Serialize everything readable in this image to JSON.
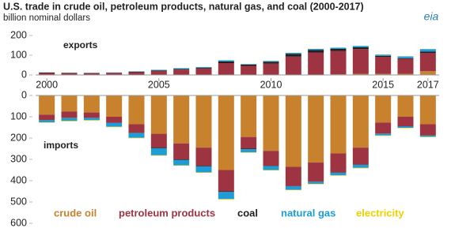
{
  "chart_data": {
    "type": "bar",
    "stacked": true,
    "title": "U.S. trade in crude oil, petroleum products, natural gas, and coal (2000-2017)",
    "subtitle": "billion nominal dollars",
    "logo": "eia",
    "categories": [
      "2000",
      null,
      null,
      null,
      null,
      "2005",
      null,
      null,
      null,
      null,
      "2010",
      null,
      null,
      null,
      null,
      "2015",
      null,
      "2017"
    ],
    "panels": [
      {
        "label": "exports",
        "ylim": [
          0,
          200
        ],
        "yticks": [
          0,
          100,
          200
        ],
        "inverted": false
      },
      {
        "label": "imports",
        "ylim": [
          0,
          600
        ],
        "yticks": [
          0,
          100,
          200,
          300,
          400,
          500,
          600
        ],
        "inverted": true
      }
    ],
    "series": [
      {
        "name": "crude oil",
        "color": "#c8822d",
        "exports": [
          1,
          1,
          1,
          1,
          1,
          1,
          2,
          2,
          2,
          2,
          1,
          1,
          2,
          3,
          5,
          5,
          6,
          19
        ],
        "imports": [
          90,
          75,
          80,
          100,
          135,
          180,
          225,
          245,
          350,
          195,
          260,
          335,
          315,
          272,
          245,
          127,
          100,
          135
        ]
      },
      {
        "name": "petroleum products",
        "color": "#9e3441",
        "exports": [
          9,
          8,
          8,
          9,
          13,
          19,
          25,
          31,
          58,
          44,
          56,
          92,
          112,
          118,
          126,
          87,
          76,
          93
        ],
        "imports": [
          25,
          30,
          25,
          28,
          40,
          65,
          75,
          85,
          100,
          55,
          70,
          90,
          90,
          90,
          80,
          52,
          45,
          52
        ]
      },
      {
        "name": "coal",
        "color": "#231f20",
        "exports": [
          2,
          2,
          1,
          1,
          2,
          3,
          3,
          3,
          8,
          6,
          10,
          14,
          13,
          11,
          9,
          5,
          3,
          6
        ],
        "imports": [
          1,
          1,
          1,
          1,
          2,
          3,
          3,
          3,
          3,
          2,
          2,
          2,
          1,
          1,
          1,
          1,
          1,
          1
        ]
      },
      {
        "name": "natural gas",
        "color": "#1e9cd7",
        "exports": [
          1,
          1,
          1,
          2,
          2,
          3,
          4,
          4,
          6,
          3,
          4,
          5,
          5,
          6,
          7,
          6,
          9,
          13
        ],
        "imports": [
          10,
          13,
          10,
          18,
          22,
          33,
          25,
          28,
          33,
          15,
          18,
          16,
          9,
          12,
          14,
          8,
          6,
          6
        ]
      },
      {
        "name": "electricity",
        "color": "#f0d000",
        "exports": [
          0.3,
          0.3,
          0.2,
          0.3,
          0.3,
          0.3,
          0.3,
          0.5,
          0.5,
          0.5,
          0.5,
          0.5,
          0.5,
          0.5,
          0.6,
          0.5,
          0.5,
          0.5
        ],
        "imports": [
          2,
          3,
          2,
          2,
          2,
          2,
          2,
          2,
          3,
          2,
          2,
          2,
          2,
          2,
          2,
          2,
          2,
          2
        ]
      }
    ]
  }
}
